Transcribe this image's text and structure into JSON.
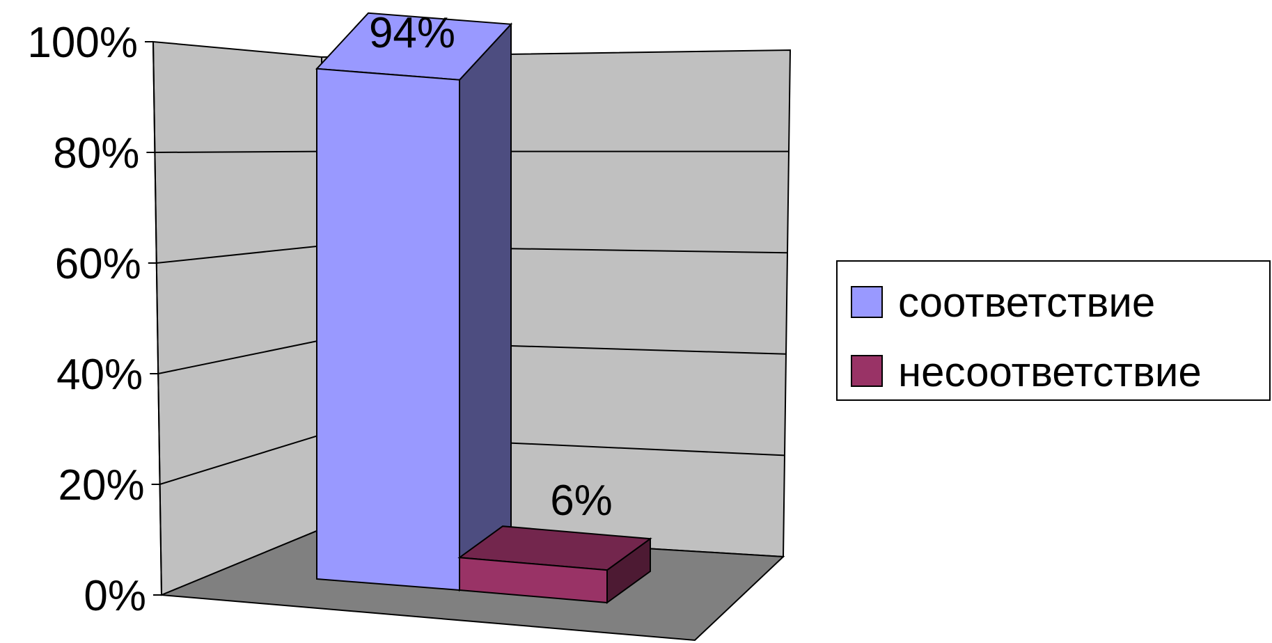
{
  "chart_data": {
    "type": "bar",
    "style": "3d-column",
    "categories": [
      ""
    ],
    "series": [
      {
        "name": "соответствие",
        "values": [
          94
        ],
        "color": "#9999ff",
        "label": "94%"
      },
      {
        "name": "несоответствие",
        "values": [
          6
        ],
        "color": "#993366",
        "label": "6%"
      }
    ],
    "ylim": [
      0,
      100
    ],
    "yticks": [
      "0%",
      "20%",
      "40%",
      "60%",
      "80%",
      "100%"
    ],
    "title": "",
    "xlabel": "",
    "ylabel": "",
    "grid": true,
    "legend_position": "right",
    "colors": {
      "walls": "#c0c0c0",
      "floor": "#808080"
    }
  }
}
